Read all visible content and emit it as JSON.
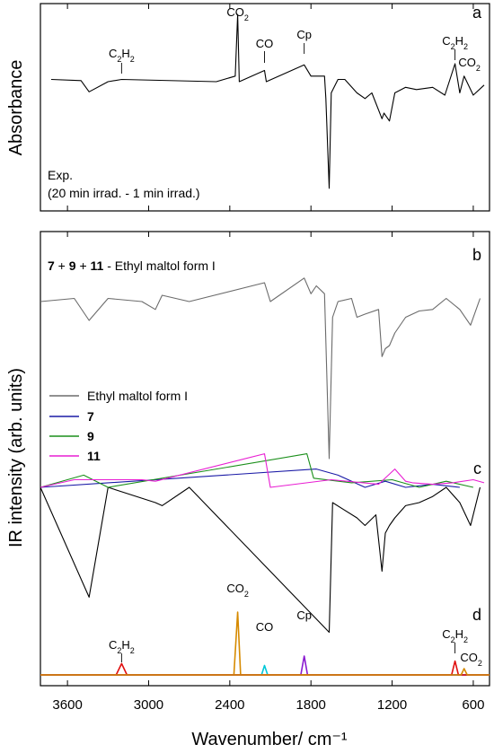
{
  "chart_data": [
    {
      "type": "line",
      "panel_label": "a",
      "ylabel": "Absorbance",
      "note_lines": [
        "Exp.",
        "(20 min irrad. - 1 min irrad.)"
      ],
      "xlim": [
        3800,
        480
      ],
      "ylim": [
        -1.0,
        0.55
      ],
      "series": [
        {
          "color": "#000000",
          "points": [
            [
              3720,
              0.02
            ],
            [
              3500,
              0.01
            ],
            [
              3440,
              -0.09
            ],
            [
              3300,
              0.0
            ],
            [
              3200,
              0.02
            ],
            [
              2500,
              0.0
            ],
            [
              2360,
              0.05
            ],
            [
              2342,
              0.6
            ],
            [
              2330,
              0.0
            ],
            [
              2143,
              0.1
            ],
            [
              2130,
              0.0
            ],
            [
              1850,
              0.15
            ],
            [
              1800,
              0.05
            ],
            [
              1700,
              0.05
            ],
            [
              1690,
              -0.15
            ],
            [
              1665,
              -0.95
            ],
            [
              1650,
              -0.1
            ],
            [
              1600,
              0.02
            ],
            [
              1550,
              0.02
            ],
            [
              1520,
              -0.02
            ],
            [
              1460,
              -0.1
            ],
            [
              1400,
              -0.15
            ],
            [
              1350,
              -0.1
            ],
            [
              1275,
              -0.33
            ],
            [
              1260,
              -0.28
            ],
            [
              1220,
              -0.35
            ],
            [
              1180,
              -0.1
            ],
            [
              1100,
              -0.05
            ],
            [
              1020,
              -0.07
            ],
            [
              900,
              -0.05
            ],
            [
              810,
              -0.12
            ],
            [
              735,
              0.16
            ],
            [
              700,
              -0.1
            ],
            [
              668,
              0.05
            ],
            [
              600,
              -0.12
            ],
            [
              520,
              -0.03
            ]
          ]
        }
      ],
      "annotations": [
        {
          "label": "C2H2",
          "x": 3200
        },
        {
          "label": "CO2",
          "x": 2342
        },
        {
          "label": "CO",
          "x": 2143
        },
        {
          "label": "Cp",
          "x": 1850
        },
        {
          "label": "C2H2",
          "x": 735
        },
        {
          "label": "CO2",
          "x": 668
        }
      ]
    },
    {
      "type": "line",
      "panel_label": "b",
      "title_parts": [
        "7",
        " + ",
        "9",
        " + ",
        "11",
        " - Ethyl maltol form I"
      ],
      "xlim": [
        3800,
        480
      ],
      "series": [
        {
          "color": "#6b6b6b",
          "points": [
            [
              3800,
              0.0
            ],
            [
              3550,
              0.02
            ],
            [
              3440,
              -0.12
            ],
            [
              3300,
              0.02
            ],
            [
              3050,
              0.0
            ],
            [
              2950,
              -0.05
            ],
            [
              2900,
              0.04
            ],
            [
              2700,
              0.0
            ],
            [
              2143,
              0.12
            ],
            [
              2100,
              0.0
            ],
            [
              1850,
              0.15
            ],
            [
              1800,
              0.05
            ],
            [
              1760,
              0.1
            ],
            [
              1700,
              0.05
            ],
            [
              1665,
              -1.0
            ],
            [
              1640,
              -0.1
            ],
            [
              1600,
              0.0
            ],
            [
              1500,
              0.02
            ],
            [
              1460,
              -0.1
            ],
            [
              1400,
              -0.08
            ],
            [
              1300,
              -0.05
            ],
            [
              1275,
              -0.35
            ],
            [
              1250,
              -0.3
            ],
            [
              1220,
              -0.28
            ],
            [
              1180,
              -0.2
            ],
            [
              1100,
              -0.1
            ],
            [
              1000,
              -0.06
            ],
            [
              900,
              -0.05
            ],
            [
              800,
              0.02
            ],
            [
              700,
              -0.05
            ],
            [
              620,
              -0.15
            ],
            [
              550,
              0.02
            ]
          ]
        }
      ]
    },
    {
      "type": "line",
      "panel_label": "c",
      "xlim": [
        3800,
        480
      ],
      "series": [
        {
          "name": "Ethyl maltol form I",
          "color": "#000000",
          "points": [
            [
              3800,
              0.0
            ],
            [
              3440,
              -0.72
            ],
            [
              3300,
              0.0
            ],
            [
              2950,
              -0.1
            ],
            [
              2900,
              -0.12
            ],
            [
              2700,
              0.0
            ],
            [
              1665,
              -0.95
            ],
            [
              1640,
              -0.1
            ],
            [
              1460,
              -0.2
            ],
            [
              1400,
              -0.25
            ],
            [
              1320,
              -0.18
            ],
            [
              1275,
              -0.55
            ],
            [
              1250,
              -0.3
            ],
            [
              1220,
              -0.25
            ],
            [
              1180,
              -0.2
            ],
            [
              1100,
              -0.12
            ],
            [
              1000,
              -0.1
            ],
            [
              900,
              -0.06
            ],
            [
              800,
              0.0
            ],
            [
              700,
              -0.1
            ],
            [
              620,
              -0.25
            ],
            [
              550,
              0.0
            ]
          ]
        },
        {
          "name": "7",
          "color": "#1a1aa6",
          "points": [
            [
              3800,
              0.0
            ],
            [
              1760,
              0.12
            ],
            [
              1600,
              0.08
            ],
            [
              1400,
              0.0
            ],
            [
              1250,
              0.04
            ],
            [
              1100,
              0.0
            ],
            [
              900,
              0.02
            ],
            [
              700,
              0.0
            ]
          ]
        },
        {
          "name": "9",
          "color": "#1a8f1a",
          "points": [
            [
              3800,
              0.0
            ],
            [
              3480,
              0.08
            ],
            [
              3300,
              0.0
            ],
            [
              1830,
              0.22
            ],
            [
              1780,
              0.06
            ],
            [
              1500,
              0.03
            ],
            [
              1200,
              0.05
            ],
            [
              1000,
              0.0
            ],
            [
              800,
              0.04
            ],
            [
              600,
              0.0
            ]
          ]
        },
        {
          "name": "11",
          "color": "#e81ed2",
          "points": [
            [
              3800,
              0.0
            ],
            [
              3550,
              0.05
            ],
            [
              3050,
              0.05
            ],
            [
              2950,
              0.04
            ],
            [
              2143,
              0.22
            ],
            [
              2100,
              0.0
            ],
            [
              1650,
              0.05
            ],
            [
              1300,
              0.02
            ],
            [
              1180,
              0.12
            ],
            [
              1100,
              0.04
            ],
            [
              1050,
              0.03
            ],
            [
              900,
              0.02
            ],
            [
              750,
              0.03
            ],
            [
              600,
              0.05
            ],
            [
              520,
              0.03
            ]
          ]
        }
      ]
    },
    {
      "type": "line",
      "panel_label": "d",
      "xlabel": "Wavenumber/ cm⁻¹",
      "ylabel": "IR intensity (arb. units)",
      "xlim": [
        3800,
        480
      ],
      "xticks": [
        3600,
        3000,
        2400,
        1800,
        1200,
        600
      ],
      "series": [
        {
          "name": "C2H2",
          "color": "#e01010",
          "points": [
            [
              3800,
              0.0
            ],
            [
              3240,
              0.0
            ],
            [
              3200,
              0.18
            ],
            [
              3160,
              0.0
            ],
            [
              480,
              0.0
            ]
          ]
        },
        {
          "name": "CO2",
          "color": "#d68a00",
          "points": [
            [
              3800,
              0.0
            ],
            [
              2370,
              0.0
            ],
            [
              2342,
              1.0
            ],
            [
              2320,
              0.0
            ],
            [
              480,
              0.0
            ]
          ]
        },
        {
          "name": "CO",
          "color": "#00c8d8",
          "points": [
            [
              3800,
              0.0
            ],
            [
              2165,
              0.0
            ],
            [
              2143,
              0.15
            ],
            [
              2120,
              0.0
            ],
            [
              480,
              0.0
            ]
          ]
        },
        {
          "name": "Cp",
          "color": "#8a1ad0",
          "points": [
            [
              3800,
              0.0
            ],
            [
              1875,
              0.0
            ],
            [
              1850,
              0.3
            ],
            [
              1825,
              0.0
            ],
            [
              480,
              0.0
            ]
          ]
        },
        {
          "name": "C2H2",
          "color": "#e01010",
          "points": [
            [
              3800,
              0.0
            ],
            [
              760,
              0.0
            ],
            [
              735,
              0.22
            ],
            [
              710,
              0.0
            ],
            [
              480,
              0.0
            ]
          ]
        },
        {
          "name": "CO2",
          "color": "#d68a00",
          "points": [
            [
              3800,
              0.0
            ],
            [
              690,
              0.0
            ],
            [
              668,
              0.1
            ],
            [
              645,
              0.0
            ],
            [
              480,
              0.0
            ]
          ]
        }
      ],
      "annotations": [
        {
          "label": "C2H2",
          "x": 3200
        },
        {
          "label": "CO2",
          "x": 2342
        },
        {
          "label": "CO",
          "x": 2143
        },
        {
          "label": "Cp",
          "x": 1850
        },
        {
          "label": "C2H2",
          "x": 735
        },
        {
          "label": "CO2",
          "x": 668
        }
      ]
    }
  ]
}
